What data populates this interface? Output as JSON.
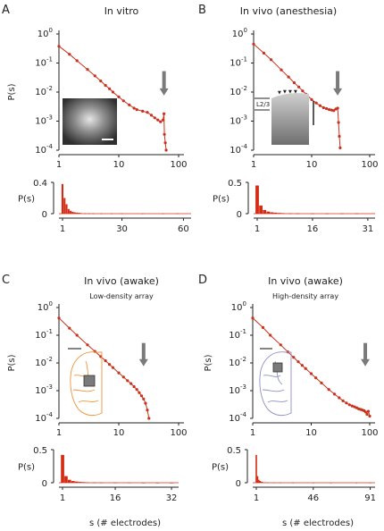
{
  "figure": {
    "x_axis_label": "s (# electrodes)",
    "y_axis_label": "P(s)"
  },
  "panels": [
    {
      "letter": "A",
      "title": "In vitro",
      "subtitle": "",
      "inset": "microscopy-image",
      "inset_label": "",
      "arrow_at_s": 57,
      "top": {
        "yticks": [
          {
            "exp": "0",
            "v": 0
          },
          {
            "exp": "-1",
            "v": -1
          },
          {
            "exp": "-2",
            "v": -2
          },
          {
            "exp": "-3",
            "v": -3
          },
          {
            "exp": "-4",
            "v": -4
          }
        ],
        "xticks": [
          {
            "label": "1",
            "v": 1
          },
          {
            "label": "10",
            "v": 10
          },
          {
            "label": "100",
            "v": 100
          }
        ]
      },
      "bottom": {
        "yticks": [
          "0.4",
          "0"
        ],
        "ymax": 0.4,
        "xticks": [
          {
            "label": "1",
            "v": 1
          },
          {
            "label": "30",
            "v": 30
          },
          {
            "label": "60",
            "v": 60
          }
        ],
        "xmax": 62
      }
    },
    {
      "letter": "B",
      "title": "In vivo (anesthesia)",
      "subtitle": "",
      "inset": "cortex-slice-image",
      "inset_label": "L2/3",
      "arrow_at_s": 28,
      "top": {
        "yticks": [
          {
            "exp": "0",
            "v": 0
          },
          {
            "exp": "-1",
            "v": -1
          },
          {
            "exp": "-2",
            "v": -2
          },
          {
            "exp": "-3",
            "v": -3
          },
          {
            "exp": "-4",
            "v": -4
          }
        ],
        "xticks": [
          {
            "label": "1",
            "v": 1
          },
          {
            "label": "10",
            "v": 10
          },
          {
            "label": "100",
            "v": 100
          }
        ]
      },
      "bottom": {
        "yticks": [
          "0.5",
          "0"
        ],
        "ymax": 0.5,
        "xticks": [
          {
            "label": "1",
            "v": 1
          },
          {
            "label": "16",
            "v": 16
          },
          {
            "label": "31",
            "v": 31
          }
        ],
        "xmax": 32
      }
    },
    {
      "letter": "C",
      "title": "In vivo (awake)",
      "subtitle": "Low-density array",
      "inset": "brain-outline",
      "inset_label": "",
      "arrow_at_s": 26,
      "top": {
        "yticks": [
          {
            "exp": "0",
            "v": 0
          },
          {
            "exp": "-1",
            "v": -1
          },
          {
            "exp": "-2",
            "v": -2
          },
          {
            "exp": "-3",
            "v": -3
          },
          {
            "exp": "-4",
            "v": -4
          }
        ],
        "xticks": [
          {
            "label": "1",
            "v": 1
          },
          {
            "label": "10",
            "v": 10
          },
          {
            "label": "100",
            "v": 100
          }
        ]
      },
      "bottom": {
        "yticks": [
          "0.5",
          "0"
        ],
        "ymax": 0.5,
        "xticks": [
          {
            "label": "1",
            "v": 1
          },
          {
            "label": "16",
            "v": 16
          },
          {
            "label": "32",
            "v": 32
          }
        ],
        "xmax": 33
      }
    },
    {
      "letter": "D",
      "title": "In vivo (awake)",
      "subtitle": "High-density array",
      "inset": "brain-outline",
      "inset_label": "",
      "arrow_at_s": 84,
      "top": {
        "yticks": [
          {
            "exp": "0",
            "v": 0
          },
          {
            "exp": "-1",
            "v": -1
          },
          {
            "exp": "-2",
            "v": -2
          },
          {
            "exp": "-3",
            "v": -3
          },
          {
            "exp": "-4",
            "v": -4
          }
        ],
        "xticks": [
          {
            "label": "1",
            "v": 1
          },
          {
            "label": "10",
            "v": 10
          },
          {
            "label": "100",
            "v": 100
          }
        ]
      },
      "bottom": {
        "yticks": [
          "0.5",
          "0"
        ],
        "ymax": 0.5,
        "xticks": [
          {
            "label": "1",
            "v": 1
          },
          {
            "label": "46",
            "v": 46
          },
          {
            "label": "91",
            "v": 91
          }
        ],
        "xmax": 92
      }
    }
  ],
  "colors": {
    "data": "#c8321e",
    "bar": "#d42b14",
    "arrow": "#7a7a7a",
    "axis": "#222222",
    "brain_c": "#f0943a",
    "brain_d": "#8f8fc8"
  },
  "chart_data": [
    {
      "panel": "A",
      "type": "line",
      "title": "In vitro",
      "scale": "log-log",
      "xlim": [
        1,
        100
      ],
      "ylim": [
        0.0001,
        1
      ],
      "series": [
        {
          "x": [
            1,
            1.5,
            2,
            3,
            4,
            5,
            6,
            7,
            8,
            10,
            12,
            15,
            18,
            20,
            25,
            30,
            35,
            40,
            45,
            50,
            55,
            57,
            58,
            60,
            62
          ],
          "y": [
            0.38,
            0.2,
            0.12,
            0.06,
            0.036,
            0.024,
            0.017,
            0.013,
            0.01,
            0.0068,
            0.005,
            0.0036,
            0.0028,
            0.0025,
            0.0022,
            0.002,
            0.0016,
            0.0013,
            0.0011,
            0.00095,
            0.0011,
            0.0018,
            0.00035,
            0.00018,
            0.0001
          ]
        }
      ]
    },
    {
      "panel": "A",
      "type": "bar",
      "ylim": [
        0,
        0.4
      ],
      "x": [
        1,
        2,
        3,
        4,
        5,
        6,
        7,
        8,
        9,
        10,
        12,
        14,
        16,
        20,
        25,
        30,
        40,
        50,
        57
      ],
      "values": [
        0.38,
        0.2,
        0.12,
        0.06,
        0.036,
        0.024,
        0.017,
        0.013,
        0.011,
        0.0068,
        0.005,
        0.0042,
        0.0035,
        0.0025,
        0.0022,
        0.002,
        0.0013,
        0.00095,
        0.0018
      ]
    },
    {
      "panel": "B",
      "type": "line",
      "title": "In vivo (anesthesia)",
      "scale": "log-log",
      "xlim": [
        1,
        100
      ],
      "ylim": [
        0.0001,
        1
      ],
      "series": [
        {
          "x": [
            1,
            1.5,
            2,
            3,
            4,
            5,
            6,
            7,
            8,
            10,
            12,
            14,
            16,
            18,
            20,
            22,
            24,
            26,
            28,
            29,
            30,
            31
          ],
          "y": [
            0.45,
            0.22,
            0.13,
            0.058,
            0.033,
            0.021,
            0.015,
            0.011,
            0.0085,
            0.0055,
            0.0042,
            0.0034,
            0.0029,
            0.0027,
            0.0025,
            0.0024,
            0.0023,
            0.0026,
            0.0028,
            0.0009,
            0.0003,
            0.00012
          ]
        }
      ]
    },
    {
      "panel": "B",
      "type": "bar",
      "ylim": [
        0,
        0.5
      ],
      "x": [
        1,
        2,
        3,
        4,
        5,
        6,
        7,
        8,
        10,
        12,
        16,
        20,
        24,
        28
      ],
      "values": [
        0.45,
        0.13,
        0.058,
        0.033,
        0.021,
        0.015,
        0.011,
        0.0085,
        0.0055,
        0.0042,
        0.0029,
        0.0025,
        0.0023,
        0.0028
      ]
    },
    {
      "panel": "C",
      "type": "line",
      "title": "In vivo (awake)",
      "subtitle": "Low-density array",
      "scale": "log-log",
      "xlim": [
        1,
        100
      ],
      "ylim": [
        0.0001,
        1
      ],
      "series": [
        {
          "x": [
            1,
            1.5,
            2,
            3,
            4,
            5,
            6,
            7,
            8,
            10,
            12,
            14,
            16,
            18,
            20,
            22,
            24,
            26,
            28,
            30,
            32
          ],
          "y": [
            0.42,
            0.18,
            0.1,
            0.045,
            0.026,
            0.017,
            0.012,
            0.0088,
            0.0068,
            0.0044,
            0.0031,
            0.0023,
            0.0018,
            0.0014,
            0.0011,
            0.00085,
            0.00065,
            0.0005,
            0.00035,
            0.0002,
            0.0001
          ]
        }
      ]
    },
    {
      "panel": "C",
      "type": "bar",
      "ylim": [
        0,
        0.5
      ],
      "x": [
        1,
        2,
        3,
        4,
        5,
        6,
        7,
        8,
        10,
        12,
        16,
        20,
        24,
        28,
        32
      ],
      "values": [
        0.42,
        0.1,
        0.045,
        0.026,
        0.017,
        0.012,
        0.0088,
        0.0068,
        0.0044,
        0.0031,
        0.0018,
        0.0011,
        0.00065,
        0.00035,
        0.0001
      ]
    },
    {
      "panel": "D",
      "type": "line",
      "title": "In vivo (awake)",
      "subtitle": "High-density array",
      "scale": "log-log",
      "xlim": [
        1,
        100
      ],
      "ylim": [
        0.0001,
        1
      ],
      "series": [
        {
          "x": [
            1,
            1.5,
            2,
            3,
            4,
            5,
            6,
            7,
            8,
            10,
            12,
            15,
            20,
            25,
            30,
            35,
            40,
            45,
            50,
            55,
            60,
            65,
            70,
            75,
            80,
            85,
            90,
            95,
            100
          ],
          "y": [
            0.42,
            0.19,
            0.1,
            0.045,
            0.025,
            0.016,
            0.011,
            0.0082,
            0.0063,
            0.0041,
            0.0029,
            0.0019,
            0.0011,
            0.00075,
            0.00055,
            0.00043,
            0.00036,
            0.00031,
            0.00028,
            0.00026,
            0.00024,
            0.00022,
            0.00021,
            0.0002,
            0.00019,
            0.00017,
            0.00014,
            0.00018,
            0.00012
          ]
        }
      ]
    },
    {
      "panel": "D",
      "type": "bar",
      "ylim": [
        0,
        0.5
      ],
      "x": [
        1,
        2,
        3,
        4,
        5,
        6,
        8,
        10,
        15,
        20,
        30,
        46,
        60,
        80,
        91
      ],
      "values": [
        0.42,
        0.1,
        0.045,
        0.025,
        0.016,
        0.011,
        0.0063,
        0.0041,
        0.0019,
        0.0011,
        0.00055,
        0.0003,
        0.00024,
        0.00019,
        0.00012
      ]
    }
  ]
}
